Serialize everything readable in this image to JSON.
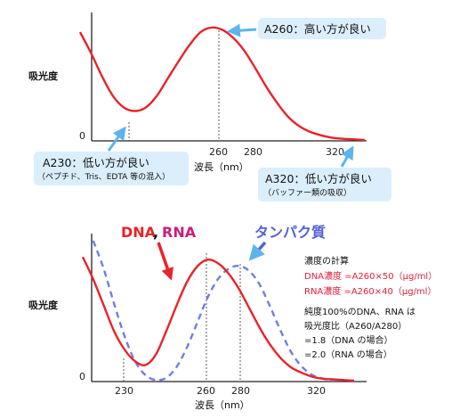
{
  "chart_data": [
    {
      "type": "line",
      "title": "",
      "xlabel": "波長（nm）",
      "ylabel": "吸光度",
      "y_zero_label": "0",
      "x_ticks": [
        260,
        280,
        320
      ],
      "xlim": [
        200,
        330
      ],
      "ylim": [
        0,
        1
      ],
      "grid": false,
      "series": [
        {
          "color": "#e8232b",
          "x": [
            200,
            205,
            210,
            215,
            220,
            225,
            230,
            235,
            240,
            245,
            250,
            255,
            260,
            265,
            270,
            275,
            280,
            285,
            290,
            295,
            300,
            305,
            310,
            315,
            320,
            325,
            330
          ],
          "y": [
            0.93,
            0.75,
            0.55,
            0.38,
            0.28,
            0.25,
            0.28,
            0.38,
            0.53,
            0.68,
            0.82,
            0.93,
            0.97,
            0.95,
            0.88,
            0.77,
            0.62,
            0.46,
            0.32,
            0.2,
            0.12,
            0.07,
            0.04,
            0.02,
            0.01,
            0.005,
            0.0
          ]
        }
      ],
      "annotations": [
        {
          "x": 230,
          "main": "A230：低い方が良い",
          "sub": "（ペプチド、Tris、EDTA 等の混入）"
        },
        {
          "x": 260,
          "main": "A260：高い方が良い"
        },
        {
          "x": 320,
          "main": "A320：低い方が良い",
          "sub": "（バッファー類の吸収）"
        }
      ]
    },
    {
      "type": "line",
      "title": "",
      "xlabel": "波長（nm）",
      "ylabel": "吸光度",
      "y_zero_label": "0",
      "x_ticks": [
        230,
        260,
        280,
        320
      ],
      "xlim": [
        200,
        330
      ],
      "ylim": [
        0,
        1
      ],
      "grid": false,
      "series": [
        {
          "name": "DNA",
          "name2": "RNA",
          "color": "#e8232b",
          "style": "solid",
          "x": [
            200,
            205,
            210,
            215,
            220,
            225,
            230,
            235,
            240,
            245,
            250,
            255,
            260,
            265,
            270,
            275,
            280,
            285,
            290,
            295,
            300,
            305,
            310,
            315,
            320,
            325,
            330
          ],
          "y": [
            0.95,
            0.78,
            0.58,
            0.38,
            0.24,
            0.15,
            0.12,
            0.2,
            0.38,
            0.58,
            0.76,
            0.88,
            0.93,
            0.9,
            0.82,
            0.7,
            0.55,
            0.4,
            0.27,
            0.17,
            0.1,
            0.06,
            0.03,
            0.015,
            0.01,
            0.005,
            0.0
          ]
        },
        {
          "name": "タンパク質",
          "color": "#6f7fe0",
          "style": "dashed",
          "x": [
            205,
            210,
            215,
            220,
            225,
            230,
            235,
            240,
            245,
            250,
            255,
            260,
            265,
            270,
            275,
            280,
            285,
            290,
            295,
            300,
            305,
            310,
            315,
            320
          ],
          "y": [
            1.0,
            0.8,
            0.55,
            0.32,
            0.14,
            0.04,
            0.005,
            0.02,
            0.1,
            0.24,
            0.42,
            0.6,
            0.73,
            0.8,
            0.82,
            0.78,
            0.68,
            0.52,
            0.35,
            0.2,
            0.1,
            0.04,
            0.015,
            0.0
          ]
        }
      ]
    }
  ],
  "labels": {
    "panel1_ylabel": "吸光度",
    "panel1_zero": "0",
    "panel1_xlabel": "波長（nm）",
    "panel1_tick_260": "260",
    "panel1_tick_280": "280",
    "panel1_tick_320": "320",
    "a230_main": "A230：低い方が良い",
    "a230_sub": "（ペプチド、Tris、EDTA 等の混入）",
    "a260_main": "A260：高い方が良い",
    "a320_main": "A320：低い方が良い",
    "a320_sub": "（バッファー類の吸収）",
    "panel2_ylabel": "吸光度",
    "panel2_zero": "0",
    "panel2_xlabel": "波長（nm）",
    "panel2_tick_230": "230",
    "panel2_tick_260": "260",
    "panel2_tick_280": "280",
    "panel2_tick_320": "320",
    "legend_dna": "DNA",
    "legend_comma": ",",
    "legend_rna": "RNA",
    "legend_protein": "タンパク質",
    "note_title": "濃度の計算",
    "note_dna": "DNA濃度 =A260×50（μg/ml）",
    "note_rna": "RNA濃度 =A260×40（μg/ml）",
    "note_purity1": "純度100%のDNA、RNA は",
    "note_purity2": "吸光度比（A260/A280）",
    "note_purity3": "=1.8（DNA の場合）",
    "note_purity4": "=2.0（RNA の場合）"
  },
  "colors": {
    "red": "#e8232b",
    "blue_dashed": "#6f7fe0",
    "callout_bg": "#dbeefc",
    "callout_arrow": "#5cb4ec",
    "pink_text": "#e0203a"
  }
}
